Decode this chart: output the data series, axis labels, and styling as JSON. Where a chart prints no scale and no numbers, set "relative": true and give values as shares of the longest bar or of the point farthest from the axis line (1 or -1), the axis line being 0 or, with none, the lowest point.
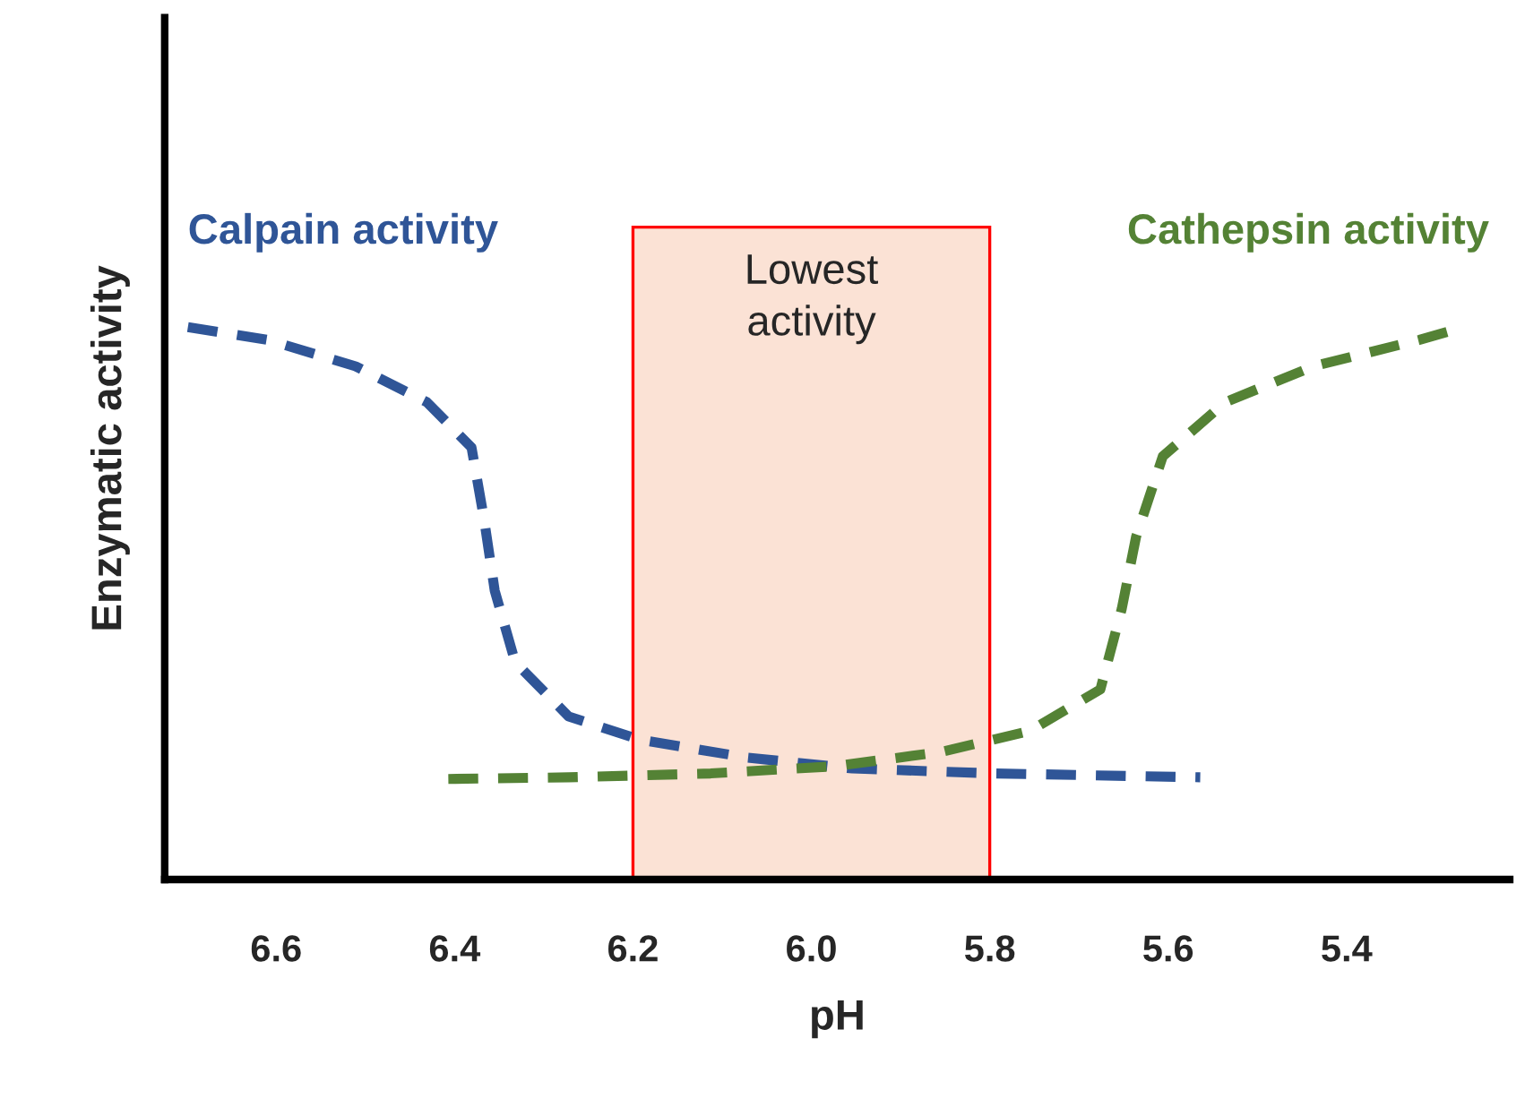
{
  "chart_data": {
    "type": "line",
    "relative": true,
    "xlabel": "pH",
    "ylabel": "Enzymatic activity",
    "xlim": [
      6.725,
      5.217
    ],
    "xticks": [
      {
        "value": 6.6,
        "label": "6.6"
      },
      {
        "value": 6.4,
        "label": "6.4"
      },
      {
        "value": 6.2,
        "label": "6.2"
      },
      {
        "value": 6.0,
        "label": "6.0"
      },
      {
        "value": 5.8,
        "label": "5.8"
      },
      {
        "value": 5.6,
        "label": "5.6"
      },
      {
        "value": 5.4,
        "label": "5.4"
      }
    ],
    "tick_labels": "x",
    "grid": false,
    "legend": false,
    "line_style": "dashed",
    "marker": "none",
    "bands": [
      {
        "axis": "x",
        "from": 6.2,
        "to": 5.8,
        "label": "Lowest\nactivity",
        "color": "#fbe2d5"
      }
    ],
    "series": [
      {
        "name": "Calpain activity",
        "color": "#2f5597",
        "x": [
          6.699,
          6.61,
          6.511,
          6.431,
          6.381,
          6.367,
          6.355,
          6.332,
          6.272,
          6.192,
          6.073,
          5.954,
          5.795,
          5.564
        ],
        "values": [
          1.0,
          0.977,
          0.929,
          0.864,
          0.782,
          0.653,
          0.523,
          0.393,
          0.295,
          0.253,
          0.221,
          0.201,
          0.192,
          0.185
        ]
      },
      {
        "name": "Cathepsin activity",
        "color": "#548235",
        "x": [
          6.407,
          6.272,
          6.113,
          5.974,
          5.854,
          5.755,
          5.676,
          5.652,
          5.636,
          5.606,
          5.536,
          5.437,
          5.318,
          5.268
        ],
        "values": [
          0.182,
          0.185,
          0.192,
          0.205,
          0.231,
          0.269,
          0.344,
          0.49,
          0.62,
          0.766,
          0.864,
          0.929,
          0.977,
          1.0
        ]
      }
    ]
  }
}
